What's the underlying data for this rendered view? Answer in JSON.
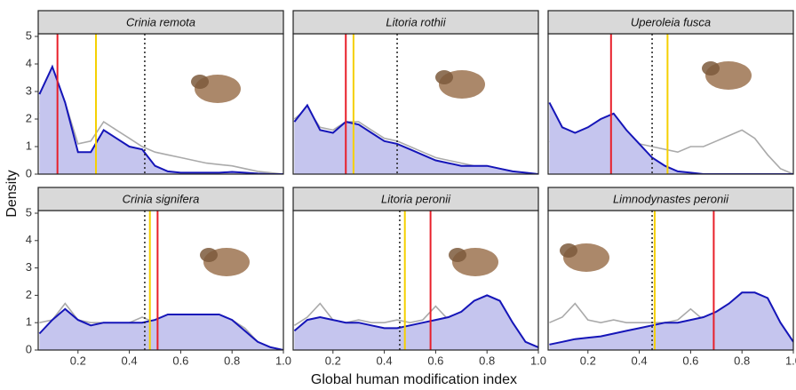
{
  "chart_data": {
    "type": "density",
    "x_label": "Global human modification index",
    "y_label": "Density",
    "xlim": [
      0.045,
      1.0
    ],
    "xticks": [
      0.2,
      0.4,
      0.6,
      0.8,
      {
        "value": 1.0,
        "label": "1.0"
      }
    ],
    "ylim": [
      0,
      5
    ],
    "yticks": [
      0,
      1,
      2,
      3,
      4,
      5
    ],
    "x": [
      0.05,
      0.1,
      0.15,
      0.2,
      0.25,
      0.3,
      0.35,
      0.4,
      0.45,
      0.5,
      0.55,
      0.6,
      0.65,
      0.7,
      0.75,
      0.8,
      0.85,
      0.9,
      0.95,
      1.0
    ],
    "panels": [
      {
        "title": "Crinia remota",
        "series": [
          {
            "color": "#1515b8",
            "fill": "#c5c5ee",
            "values": [
              2.9,
              3.9,
              2.6,
              0.8,
              0.8,
              1.6,
              1.3,
              1.0,
              0.9,
              0.3,
              0.1,
              0.05,
              0.05,
              0.05,
              0.05,
              0.08,
              0.05,
              0.02,
              0,
              0
            ]
          },
          {
            "color": "#aaaaaa",
            "values": [
              2.2,
              2.5,
              2.6,
              1.1,
              1.2,
              1.9,
              1.6,
              1.3,
              1.0,
              0.8,
              0.7,
              0.6,
              0.5,
              0.4,
              0.35,
              0.3,
              0.2,
              0.1,
              0.05,
              0
            ]
          }
        ],
        "vlines": [
          {
            "value": 0.12,
            "color": "#e8202a"
          },
          {
            "value": 0.27,
            "color": "#f5d000"
          },
          {
            "value": 0.46,
            "color": "#222222",
            "dotted": true
          }
        ]
      },
      {
        "title": "Litoria rothii",
        "series": [
          {
            "color": "#1515b8",
            "fill": "#c5c5ee",
            "values": [
              1.9,
              2.5,
              1.6,
              1.5,
              1.9,
              1.8,
              1.5,
              1.2,
              1.1,
              0.9,
              0.7,
              0.5,
              0.4,
              0.3,
              0.3,
              0.3,
              0.2,
              0.1,
              0.05,
              0
            ]
          },
          {
            "color": "#aaaaaa",
            "values": [
              2.0,
              2.4,
              1.7,
              1.6,
              1.9,
              1.9,
              1.6,
              1.3,
              1.2,
              1.0,
              0.8,
              0.6,
              0.5,
              0.4,
              0.3,
              0.3,
              0.2,
              0.1,
              0.05,
              0
            ]
          }
        ],
        "vlines": [
          {
            "value": 0.25,
            "color": "#e8202a"
          },
          {
            "value": 0.28,
            "color": "#f5d000"
          },
          {
            "value": 0.45,
            "color": "#222222",
            "dotted": true
          }
        ]
      },
      {
        "title": "Uperoleia fusca",
        "series": [
          {
            "color": "#1515b8",
            "fill": "#c5c5ee",
            "values": [
              2.6,
              1.7,
              1.5,
              1.7,
              2.0,
              2.2,
              1.6,
              1.1,
              0.6,
              0.3,
              0.1,
              0.05,
              0,
              0,
              0,
              0,
              0,
              0,
              0,
              0
            ]
          },
          {
            "color": "#aaaaaa",
            "values": [
              1.2,
              0.9,
              0.9,
              0.9,
              1.0,
              1.0,
              1.1,
              1.1,
              1.0,
              0.9,
              0.8,
              1.0,
              1.0,
              1.2,
              1.4,
              1.6,
              1.3,
              0.7,
              0.2,
              0
            ]
          }
        ],
        "vlines": [
          {
            "value": 0.29,
            "color": "#e8202a"
          },
          {
            "value": 0.51,
            "color": "#f5d000"
          },
          {
            "value": 0.45,
            "color": "#222222",
            "dotted": true
          }
        ]
      },
      {
        "title": "Crinia signifera",
        "series": [
          {
            "color": "#1515b8",
            "fill": "#c5c5ee",
            "values": [
              0.6,
              1.1,
              1.5,
              1.1,
              0.9,
              1.0,
              1.0,
              1.0,
              1.0,
              1.1,
              1.3,
              1.3,
              1.3,
              1.3,
              1.3,
              1.1,
              0.7,
              0.3,
              0.1,
              0
            ]
          },
          {
            "color": "#aaaaaa",
            "values": [
              1.0,
              1.1,
              1.7,
              1.1,
              1.0,
              1.0,
              0.9,
              1.0,
              1.2,
              1.0,
              1.1,
              1.3,
              1.2,
              1.1,
              1.2,
              1.1,
              0.8,
              0.3,
              0.1,
              0
            ]
          }
        ],
        "vlines": [
          {
            "value": 0.51,
            "color": "#e8202a"
          },
          {
            "value": 0.48,
            "color": "#f5d000"
          },
          {
            "value": 0.46,
            "color": "#222222",
            "dotted": true
          }
        ]
      },
      {
        "title": "Litoria peronii",
        "series": [
          {
            "color": "#1515b8",
            "fill": "#c5c5ee",
            "values": [
              0.7,
              1.1,
              1.2,
              1.1,
              1.0,
              1.0,
              0.9,
              0.8,
              0.8,
              0.9,
              1.0,
              1.1,
              1.2,
              1.4,
              1.8,
              2.0,
              1.8,
              1.0,
              0.3,
              0.1
            ]
          },
          {
            "color": "#aaaaaa",
            "values": [
              0.9,
              1.2,
              1.7,
              1.1,
              1.0,
              1.1,
              1.0,
              1.0,
              1.1,
              1.0,
              1.1,
              1.6,
              1.1,
              1.0,
              1.1,
              1.2,
              1.1,
              0.6,
              0.2,
              0
            ]
          }
        ],
        "vlines": [
          {
            "value": 0.58,
            "color": "#e8202a"
          },
          {
            "value": 0.48,
            "color": "#f5d000"
          },
          {
            "value": 0.46,
            "color": "#222222",
            "dotted": true
          }
        ]
      },
      {
        "title": "Limnodynastes peronii",
        "series": [
          {
            "color": "#1515b8",
            "fill": "#c5c5ee",
            "values": [
              0.2,
              0.3,
              0.4,
              0.45,
              0.5,
              0.6,
              0.7,
              0.8,
              0.9,
              1.0,
              1.0,
              1.1,
              1.2,
              1.4,
              1.7,
              2.1,
              2.1,
              1.9,
              1.0,
              0.3
            ]
          },
          {
            "color": "#aaaaaa",
            "values": [
              1.0,
              1.2,
              1.7,
              1.1,
              1.0,
              1.1,
              1.0,
              1.0,
              1.0,
              1.0,
              1.1,
              1.5,
              1.1,
              1.0,
              1.1,
              1.0,
              1.1,
              0.9,
              0.3,
              0.05
            ]
          }
        ],
        "vlines": [
          {
            "value": 0.69,
            "color": "#e8202a"
          },
          {
            "value": 0.46,
            "color": "#f5d000"
          },
          {
            "value": 0.45,
            "color": "#222222",
            "dotted": true
          }
        ]
      }
    ]
  }
}
